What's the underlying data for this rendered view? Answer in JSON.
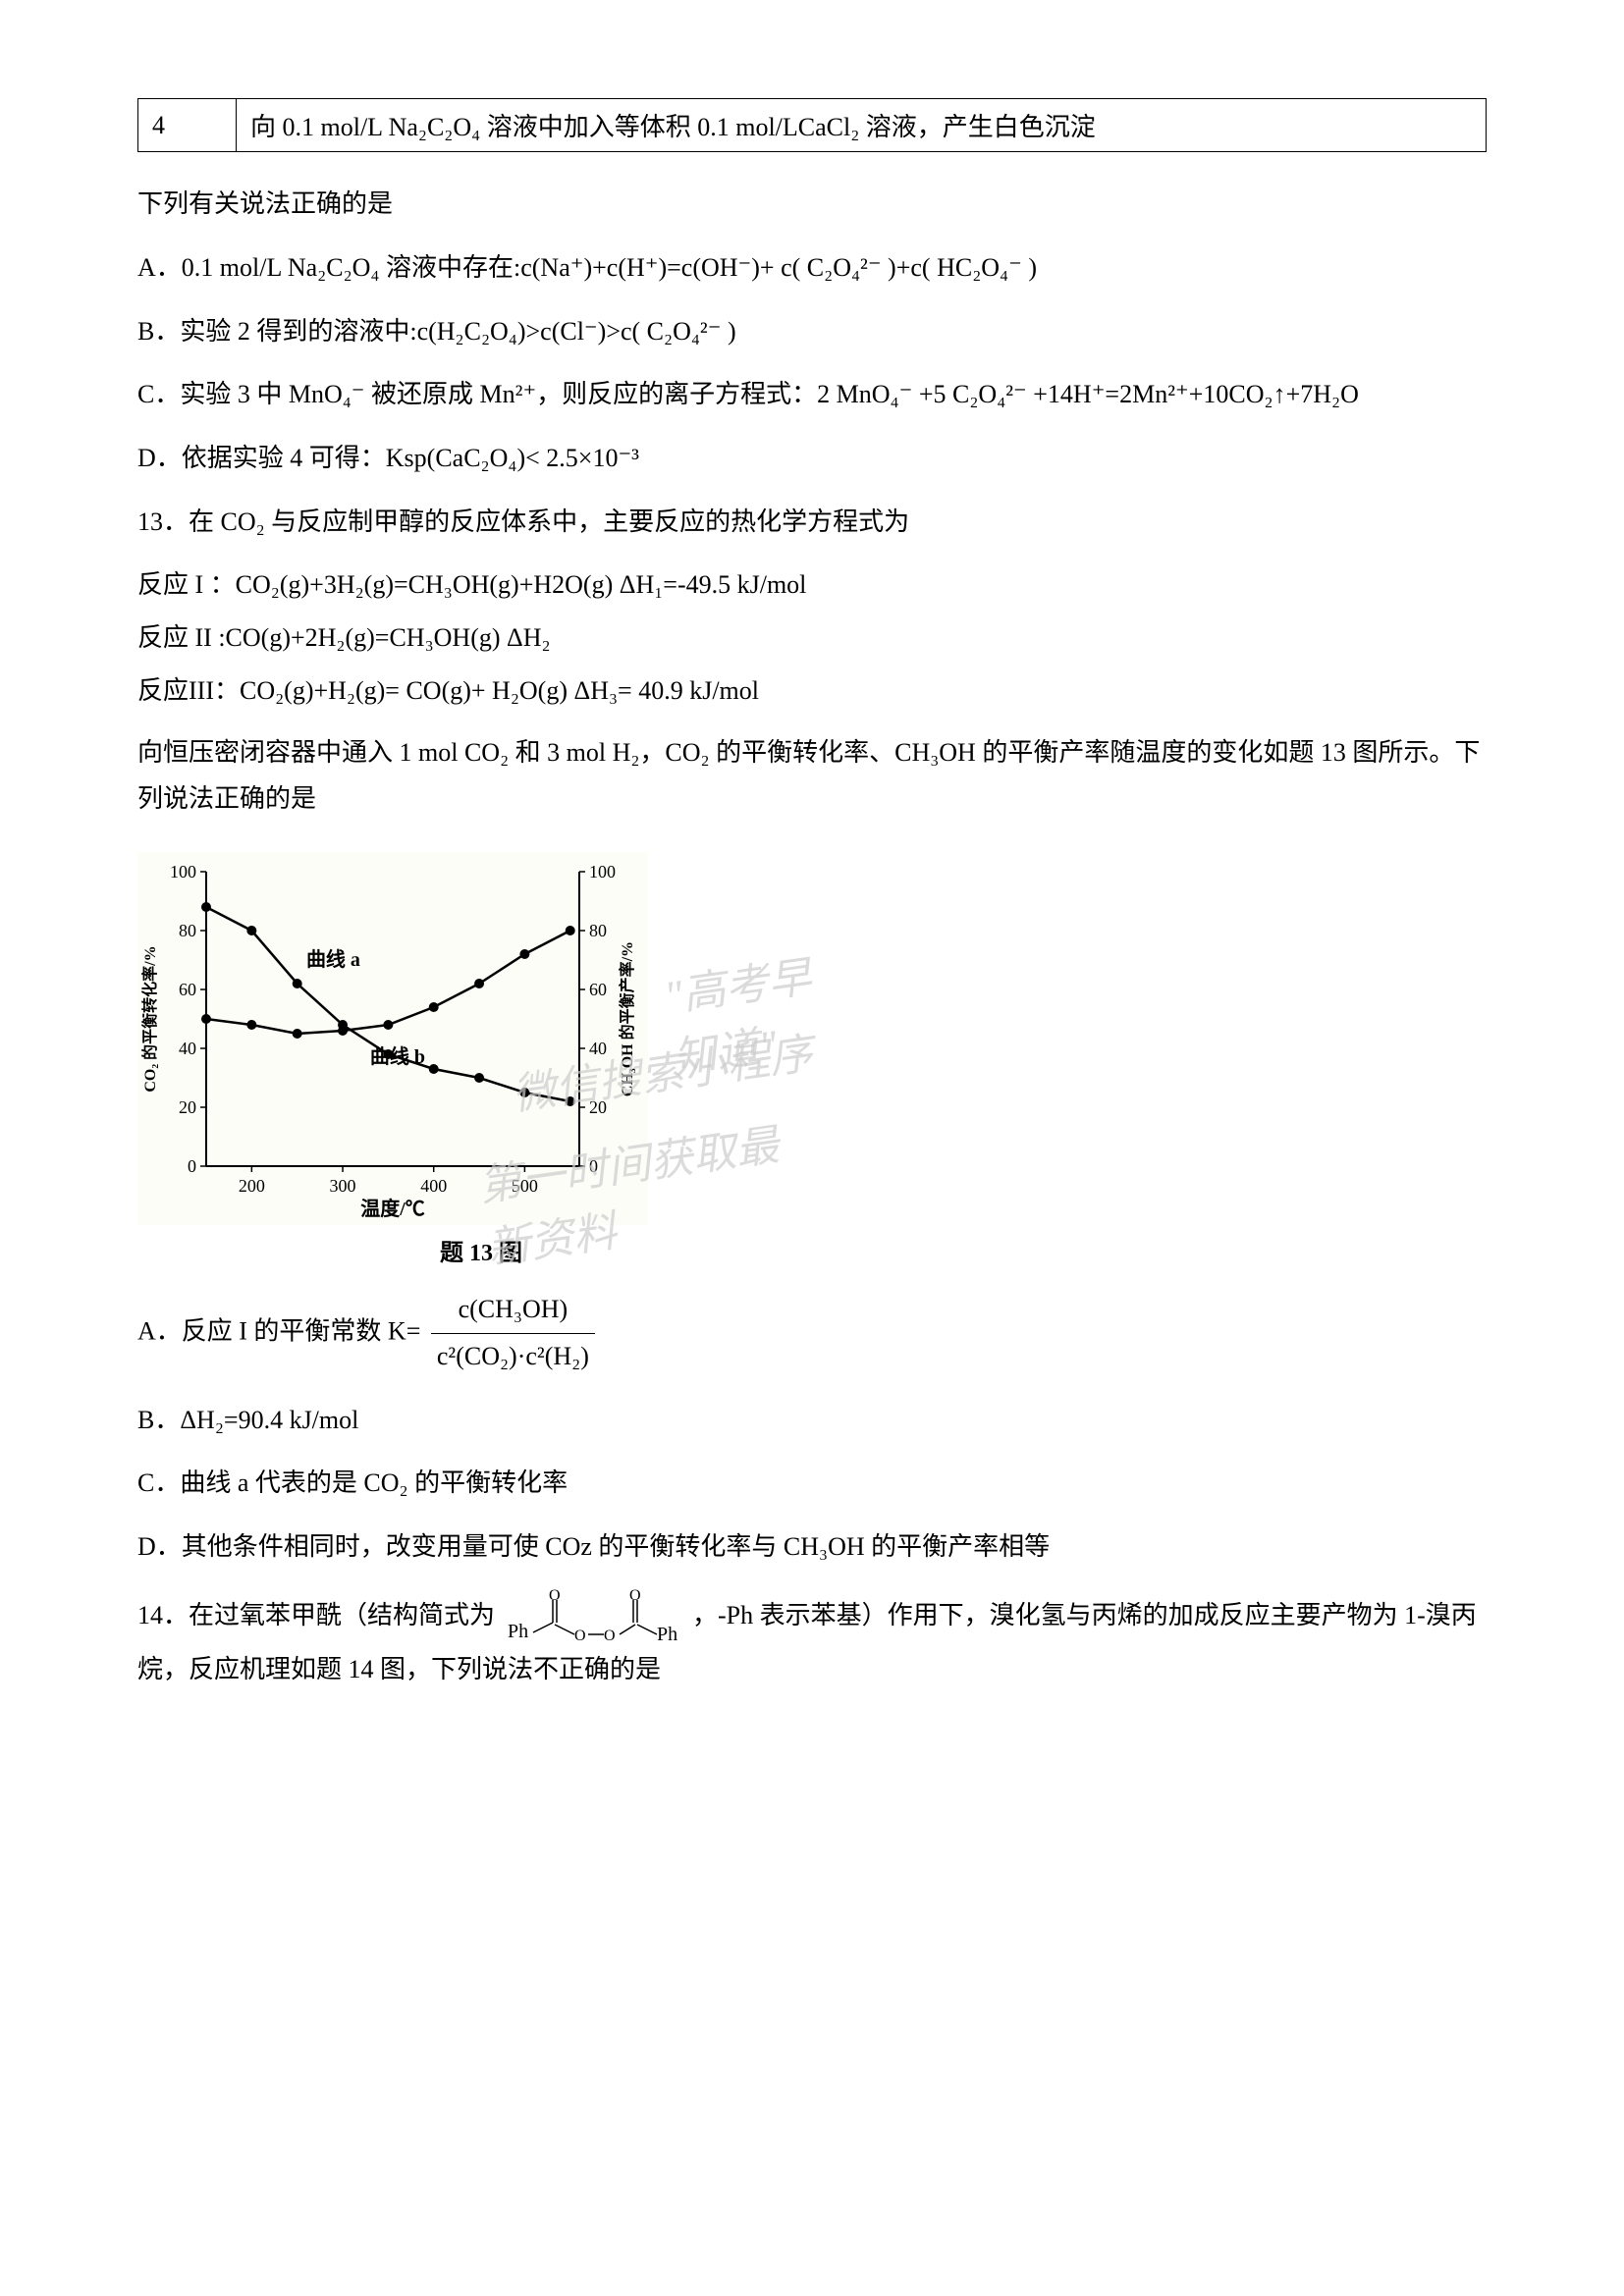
{
  "table": {
    "row_num": "4",
    "row_text": "向 0.1 mol/L Na₂C₂O₄ 溶液中加入等体积 0.1 mol/LCaCl₂ 溶液，产生白色沉淀"
  },
  "q_intro": "下列有关说法正确的是",
  "q12": {
    "optA": "A．0.1 mol/L Na₂C₂O₄ 溶液中存在:c(Na⁺)+c(H⁺)=c(OH⁻)+ c( C₂O₄²⁻ )+c( HC₂O₄⁻ )",
    "optB": "B．实验 2 得到的溶液中:c(H₂C₂O₄)>c(Cl⁻)>c( C₂O₄²⁻ )",
    "optC": "C．实验 3 中 MnO₄⁻ 被还原成 Mn²⁺，则反应的离子方程式：2 MnO₄⁻ +5 C₂O₄²⁻ +14H⁺=2Mn²⁺+10CO₂↑+7H₂O",
    "optD": "D．依据实验 4 可得：Ksp(CaC₂O₄)< 2.5×10⁻³"
  },
  "q13": {
    "stem": "13．在 CO₂ 与反应制甲醇的反应体系中，主要反应的热化学方程式为",
    "r1": "反应 I ：CO₂(g)+3H₂(g)=CH₃OH(g)+H2O(g)    ΔH₁=-49.5 kJ/mol",
    "r2": "反应 II :CO(g)+2H₂(g)=CH₃OH(g)       ΔH₂",
    "r3": "反应III：CO₂(g)+H₂(g)= CO(g)+ H₂O(g)    ΔH₃= 40.9 kJ/mol",
    "cond": "向恒压密闭容器中通入 1 mol CO₂ 和  3 mol H₂，CO₂ 的平衡转化率、CH₃OH 的平衡产率随温度的变化如题 13 图所示。下列说法正确的是",
    "chart": {
      "type": "dual-axis-line",
      "x_label": "温度/℃",
      "y_left_label": "CO₂ 的平衡转化率/%",
      "y_right_label": "CH₃OH 的平衡产率/%",
      "x_ticks": [
        200,
        300,
        400,
        500
      ],
      "y_left_ticks": [
        0,
        20,
        40,
        60,
        80,
        100
      ],
      "y_right_ticks": [
        0,
        20,
        40,
        60,
        80,
        100
      ],
      "curve_a_label": "曲线 a",
      "curve_b_label": "曲线 b",
      "curve_a_points": [
        [
          150,
          88
        ],
        [
          200,
          80
        ],
        [
          250,
          62
        ],
        [
          300,
          48
        ],
        [
          350,
          38
        ],
        [
          400,
          33
        ],
        [
          450,
          30
        ],
        [
          500,
          25
        ],
        [
          550,
          22
        ]
      ],
      "curve_b_points": [
        [
          150,
          50
        ],
        [
          200,
          48
        ],
        [
          250,
          45
        ],
        [
          300,
          46
        ],
        [
          350,
          48
        ],
        [
          400,
          54
        ],
        [
          450,
          62
        ],
        [
          500,
          72
        ],
        [
          550,
          80
        ]
      ],
      "line_color": "#000000",
      "marker": "circle",
      "marker_fill": "#000000",
      "background_color": "#f5f5f0",
      "grid": false,
      "caption": "题 13 图"
    },
    "optA_prefix": "A．反应 I 的平衡常数 K=",
    "optA_frac_num": "c(CH₃OH)",
    "optA_frac_den": "c²(CO₂)·c²(H₂)",
    "optB": "B．ΔH₂=90.4 kJ/mol",
    "optC": "C．曲线 a 代表的是 CO₂ 的平衡转化率",
    "optD": "D．其他条件相同时，改变用量可使 COz 的平衡转化率与 CH₃OH 的平衡产率相等"
  },
  "q14": {
    "stem_pre": "14．在过氧苯甲酰（结构简式为",
    "stem_post": "，-Ph 表示苯基）作用下，溴化氢与丙烯的加成反应主要产物为 1-溴丙烷，反应机理如题 14 图，下列说法不正确的是",
    "formula_label": "Ph—C(=O)—O—O—C(=O)—Ph"
  },
  "watermarks": {
    "w1": "\"高考早知道\"",
    "w2": "微信搜索小程序",
    "w3": "第一时间获取最新资料"
  }
}
